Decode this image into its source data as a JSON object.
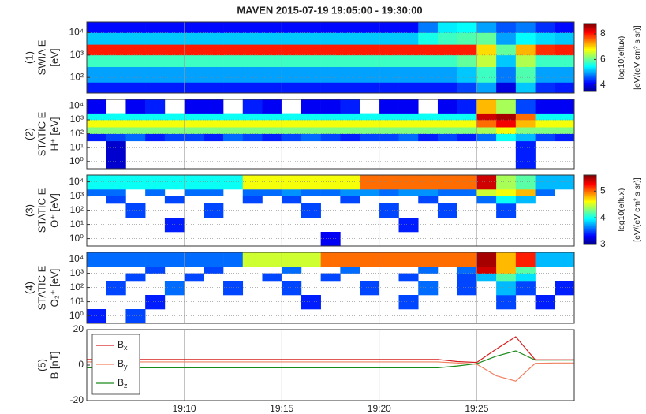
{
  "title": "MAVEN 2015-07-19 19:05:00 - 19:30:00",
  "colorbars": [
    {
      "clim": [
        3.5,
        8.8
      ],
      "ticks": [
        4,
        6,
        8
      ],
      "label": [
        "log10(eflux)",
        "[eV/(eV cm² s sr)]"
      ]
    },
    {
      "clim": [
        3,
        5.6
      ],
      "ticks": [
        3,
        4,
        5
      ],
      "label": [
        "log10(eflux)",
        "[eV/(eV cm² s sr)]"
      ]
    }
  ],
  "chart_data": [
    {
      "type": "heatmap",
      "ylabel": [
        "(1)",
        "SWIA E",
        "[eV]"
      ],
      "colorbar": 0,
      "log_y": true,
      "ylim": [
        20,
        30000
      ],
      "yticks": [
        {
          "value": 100,
          "label": "10²"
        },
        {
          "value": 1000,
          "label": "10³"
        },
        {
          "value": 10000,
          "label": "10⁴"
        }
      ],
      "x_bins": [
        "19:05",
        "19:06",
        "19:07",
        "19:08",
        "19:09",
        "19:10",
        "19:11",
        "19:12",
        "19:13",
        "19:14",
        "19:15",
        "19:16",
        "19:17",
        "19:18",
        "19:19",
        "19:20",
        "19:21",
        "19:22",
        "19:23",
        "19:24",
        "19:25",
        "19:26",
        "19:27",
        "19:28",
        "19:29",
        "19:30"
      ],
      "y_edges": [
        20,
        60,
        300,
        1000,
        3000,
        10000,
        30000
      ],
      "z": [
        [
          4.3,
          4.3,
          4.3,
          4.3,
          4.3,
          4.3,
          4.3,
          4.3,
          4.3,
          4.3,
          4.3,
          4.3,
          4.3,
          4.3,
          4.3,
          4.3,
          4.3,
          4.3,
          4.3,
          4.5,
          5.0,
          4.0,
          5.2,
          4.4,
          4.3
        ],
        [
          5.0,
          5.0,
          5.0,
          5.0,
          5.0,
          5.0,
          5.0,
          5.0,
          5.0,
          5.0,
          5.0,
          5.0,
          5.0,
          5.0,
          5.0,
          5.0,
          5.0,
          5.0,
          5.0,
          5.2,
          5.8,
          4.8,
          5.9,
          5.0,
          5.0
        ],
        [
          5.8,
          5.8,
          5.8,
          5.8,
          5.8,
          5.8,
          5.8,
          5.8,
          5.8,
          5.8,
          5.8,
          5.8,
          5.8,
          5.8,
          5.8,
          5.8,
          5.8,
          5.8,
          5.8,
          6.0,
          6.5,
          5.2,
          6.4,
          5.8,
          5.8
        ],
        [
          8.0,
          8.0,
          8.0,
          8.0,
          8.0,
          8.0,
          8.0,
          8.0,
          8.0,
          8.0,
          8.0,
          8.0,
          8.0,
          8.0,
          8.0,
          8.0,
          8.0,
          8.0,
          8.0,
          8.0,
          7.0,
          6.0,
          7.2,
          7.9,
          8.0
        ],
        [
          5.2,
          5.2,
          5.2,
          5.2,
          5.2,
          5.2,
          5.2,
          5.2,
          5.2,
          5.2,
          5.2,
          5.2,
          5.2,
          5.2,
          5.2,
          5.2,
          5.2,
          5.6,
          5.8,
          5.9,
          6.0,
          5.0,
          5.5,
          5.3,
          5.2
        ],
        [
          4.2,
          4.2,
          4.2,
          4.2,
          4.2,
          4.2,
          4.2,
          4.2,
          4.2,
          4.2,
          4.2,
          4.2,
          4.2,
          4.2,
          4.2,
          4.2,
          4.2,
          4.8,
          5.4,
          5.5,
          5.0,
          4.6,
          4.8,
          4.4,
          4.2
        ]
      ]
    },
    {
      "type": "heatmap",
      "ylabel": [
        "(2)",
        "STATIC E",
        "H⁺ [eV]"
      ],
      "colorbar": 1,
      "log_y": true,
      "ylim": [
        0.3,
        30000
      ],
      "yticks": [
        {
          "value": 1,
          "label": "10⁰"
        },
        {
          "value": 10,
          "label": "10¹"
        },
        {
          "value": 100,
          "label": "10²"
        },
        {
          "value": 1000,
          "label": "10³"
        },
        {
          "value": 10000,
          "label": "10⁴"
        }
      ],
      "x_bins": [
        "19:05",
        "19:06",
        "19:07",
        "19:08",
        "19:09",
        "19:10",
        "19:11",
        "19:12",
        "19:13",
        "19:14",
        "19:15",
        "19:16",
        "19:17",
        "19:18",
        "19:19",
        "19:20",
        "19:21",
        "19:22",
        "19:23",
        "19:24",
        "19:25",
        "19:26",
        "19:27",
        "19:28",
        "19:29",
        "19:30"
      ],
      "y_edges": [
        0.3,
        30,
        100,
        300,
        1000,
        3000,
        30000
      ],
      "z": [
        [
          null,
          3.2,
          null,
          null,
          null,
          null,
          null,
          null,
          null,
          null,
          null,
          null,
          null,
          null,
          null,
          null,
          null,
          null,
          null,
          null,
          null,
          null,
          3.4,
          null,
          null
        ],
        [
          3.4,
          3.5,
          3.6,
          3.4,
          3.5,
          3.5,
          3.4,
          3.6,
          3.5,
          3.4,
          3.5,
          3.6,
          3.5,
          3.4,
          3.5,
          3.5,
          3.6,
          3.4,
          3.5,
          3.4,
          3.6,
          4.0,
          3.8,
          3.5,
          3.4
        ],
        [
          4.3,
          4.3,
          4.3,
          4.3,
          4.3,
          4.3,
          4.3,
          4.3,
          4.3,
          4.3,
          4.3,
          4.3,
          4.3,
          4.3,
          4.3,
          4.3,
          4.3,
          4.3,
          4.3,
          4.3,
          4.4,
          4.6,
          4.3,
          4.3,
          4.3
        ],
        [
          4.6,
          4.6,
          4.6,
          4.6,
          4.6,
          4.6,
          4.6,
          4.6,
          4.6,
          4.6,
          4.6,
          4.6,
          4.6,
          4.6,
          4.6,
          4.6,
          4.6,
          4.6,
          4.6,
          4.6,
          5.0,
          5.3,
          4.8,
          4.6,
          4.6
        ],
        [
          4.0,
          4.0,
          4.0,
          4.0,
          4.0,
          4.0,
          4.0,
          4.0,
          4.0,
          4.0,
          4.0,
          4.0,
          4.0,
          4.0,
          4.0,
          4.0,
          4.0,
          4.0,
          4.0,
          4.0,
          5.4,
          5.5,
          5.0,
          4.0,
          4.0
        ],
        [
          3.3,
          null,
          3.3,
          3.4,
          null,
          3.3,
          3.3,
          null,
          3.4,
          3.3,
          null,
          3.3,
          3.3,
          3.4,
          null,
          3.3,
          3.3,
          null,
          3.3,
          3.4,
          4.8,
          4.4,
          3.5,
          3.3,
          3.3
        ]
      ]
    },
    {
      "type": "heatmap",
      "ylabel": [
        "(3)",
        "STATIC E",
        "O⁺ [eV]"
      ],
      "colorbar": 1,
      "log_y": true,
      "ylim": [
        0.3,
        30000
      ],
      "yticks": [
        {
          "value": 1,
          "label": "10⁰"
        },
        {
          "value": 10,
          "label": "10¹"
        },
        {
          "value": 100,
          "label": "10²"
        },
        {
          "value": 1000,
          "label": "10³"
        },
        {
          "value": 10000,
          "label": "10⁴"
        }
      ],
      "x_bins": [
        "19:05",
        "19:06",
        "19:07",
        "19:08",
        "19:09",
        "19:10",
        "19:11",
        "19:12",
        "19:13",
        "19:14",
        "19:15",
        "19:16",
        "19:17",
        "19:18",
        "19:19",
        "19:20",
        "19:21",
        "19:22",
        "19:23",
        "19:24",
        "19:25",
        "19:26",
        "19:27",
        "19:28",
        "19:29",
        "19:30"
      ],
      "y_edges": [
        0.3,
        3,
        30,
        300,
        1000,
        3000,
        30000
      ],
      "z": [
        [
          null,
          null,
          null,
          null,
          null,
          null,
          null,
          null,
          null,
          null,
          null,
          null,
          3.3,
          null,
          null,
          null,
          null,
          null,
          null,
          null,
          null,
          null,
          null,
          null,
          null
        ],
        [
          null,
          null,
          null,
          null,
          3.4,
          null,
          null,
          null,
          null,
          null,
          null,
          null,
          null,
          null,
          null,
          null,
          3.4,
          null,
          null,
          null,
          null,
          null,
          null,
          null,
          null
        ],
        [
          null,
          null,
          3.5,
          null,
          null,
          null,
          3.5,
          null,
          null,
          null,
          null,
          3.5,
          null,
          null,
          null,
          3.5,
          null,
          null,
          3.5,
          null,
          null,
          3.5,
          null,
          null,
          null
        ],
        [
          null,
          3.5,
          null,
          null,
          3.5,
          null,
          null,
          null,
          3.5,
          null,
          3.5,
          null,
          null,
          3.5,
          null,
          null,
          null,
          3.5,
          null,
          null,
          3.6,
          4.0,
          3.8,
          null,
          null
        ],
        [
          3.6,
          3.6,
          null,
          3.6,
          null,
          3.6,
          3.6,
          null,
          3.6,
          3.6,
          3.7,
          3.6,
          3.6,
          3.7,
          3.7,
          3.6,
          3.7,
          3.7,
          3.6,
          3.6,
          4.5,
          4.6,
          4.8,
          3.6,
          null
        ],
        [
          4.0,
          4.0,
          4.0,
          4.0,
          4.0,
          4.0,
          4.0,
          4.0,
          4.6,
          4.6,
          4.6,
          4.6,
          4.6,
          4.6,
          5.0,
          5.0,
          5.0,
          5.0,
          5.0,
          5.0,
          5.4,
          4.4,
          4.2,
          3.8,
          3.8
        ]
      ]
    },
    {
      "type": "heatmap",
      "ylabel": [
        "(4)",
        "STATIC E",
        "O₂⁺ [eV]"
      ],
      "colorbar": 1,
      "log_y": true,
      "ylim": [
        0.3,
        30000
      ],
      "yticks": [
        {
          "value": 1,
          "label": "10⁰"
        },
        {
          "value": 10,
          "label": "10¹"
        },
        {
          "value": 100,
          "label": "10²"
        },
        {
          "value": 1000,
          "label": "10³"
        },
        {
          "value": 10000,
          "label": "10⁴"
        }
      ],
      "x_bins": [
        "19:05",
        "19:06",
        "19:07",
        "19:08",
        "19:09",
        "19:10",
        "19:11",
        "19:12",
        "19:13",
        "19:14",
        "19:15",
        "19:16",
        "19:17",
        "19:18",
        "19:19",
        "19:20",
        "19:21",
        "19:22",
        "19:23",
        "19:24",
        "19:25",
        "19:26",
        "19:27",
        "19:28",
        "19:29",
        "19:30"
      ],
      "y_edges": [
        0.3,
        3,
        30,
        300,
        1000,
        3000,
        30000
      ],
      "z": [
        [
          3.4,
          null,
          3.5,
          null,
          null,
          null,
          null,
          null,
          null,
          null,
          null,
          null,
          null,
          null,
          null,
          null,
          null,
          null,
          null,
          null,
          null,
          null,
          null,
          null,
          null
        ],
        [
          null,
          null,
          null,
          3.4,
          null,
          null,
          null,
          null,
          null,
          null,
          null,
          3.4,
          null,
          null,
          null,
          null,
          3.5,
          null,
          null,
          null,
          null,
          3.5,
          null,
          3.4,
          null
        ],
        [
          null,
          3.5,
          null,
          null,
          3.6,
          null,
          null,
          3.5,
          null,
          null,
          3.5,
          null,
          null,
          null,
          3.5,
          null,
          null,
          3.6,
          null,
          3.5,
          null,
          3.8,
          3.5,
          null,
          3.4
        ],
        [
          null,
          null,
          3.5,
          null,
          null,
          3.5,
          null,
          null,
          null,
          3.5,
          null,
          null,
          3.5,
          null,
          null,
          null,
          3.5,
          null,
          null,
          3.5,
          3.8,
          4.2,
          3.9,
          null,
          null
        ],
        [
          null,
          null,
          null,
          3.5,
          null,
          null,
          3.5,
          null,
          null,
          null,
          3.6,
          null,
          null,
          3.6,
          null,
          null,
          null,
          3.6,
          null,
          3.6,
          5.4,
          4.8,
          4.2,
          null,
          null
        ],
        [
          3.6,
          3.6,
          3.6,
          3.6,
          3.6,
          3.6,
          3.6,
          3.6,
          4.5,
          4.5,
          4.5,
          4.5,
          5.0,
          5.0,
          5.0,
          5.0,
          5.0,
          5.0,
          5.0,
          5.0,
          5.5,
          4.8,
          5.2,
          3.8,
          3.8
        ]
      ]
    },
    {
      "type": "line",
      "ylabel": [
        "(5)",
        "B [nT]"
      ],
      "ylim": [
        -20,
        20
      ],
      "yticks": [
        -20,
        0,
        20
      ],
      "xlim": [
        "19:05",
        "19:30"
      ],
      "xticks": [
        "19:10",
        "19:15",
        "19:20",
        "19:25"
      ],
      "legend": "upper left",
      "x": [
        "19:05",
        "19:06",
        "19:07",
        "19:08",
        "19:09",
        "19:10",
        "19:11",
        "19:12",
        "19:13",
        "19:14",
        "19:15",
        "19:16",
        "19:17",
        "19:18",
        "19:19",
        "19:20",
        "19:21",
        "19:22",
        "19:23",
        "19:24",
        "19:25",
        "19:26",
        "19:27",
        "19:28",
        "19:29",
        "19:30"
      ],
      "series": [
        {
          "name": "Bx",
          "color": "#d62020",
          "values": [
            3.2,
            3.2,
            3.2,
            3.2,
            3.2,
            3.2,
            3.2,
            3.2,
            3.2,
            3.2,
            3.2,
            3.2,
            3.2,
            3.2,
            3.2,
            3.2,
            3.2,
            3.2,
            3.2,
            2.0,
            1.5,
            9,
            16,
            3.0,
            3.0,
            3.0
          ]
        },
        {
          "name": "By",
          "color": "#f08060",
          "values": [
            1.8,
            1.8,
            1.8,
            1.8,
            1.8,
            1.8,
            1.8,
            1.8,
            1.8,
            1.8,
            1.8,
            1.8,
            1.8,
            1.8,
            1.8,
            1.8,
            1.8,
            1.8,
            1.8,
            1.2,
            0.5,
            -6,
            -9,
            1.0,
            1.2,
            1.2
          ]
        },
        {
          "name": "Bz",
          "color": "#1a8a1a",
          "values": [
            -1.5,
            -1.5,
            -1.5,
            -1.5,
            -1.5,
            -1.5,
            -1.5,
            -1.5,
            -1.5,
            -1.5,
            -1.5,
            -1.5,
            -1.5,
            -1.5,
            -1.5,
            -1.5,
            -1.5,
            -1.5,
            -1.5,
            -0.5,
            0.8,
            5,
            8,
            2.8,
            2.8,
            2.8
          ]
        }
      ]
    }
  ]
}
